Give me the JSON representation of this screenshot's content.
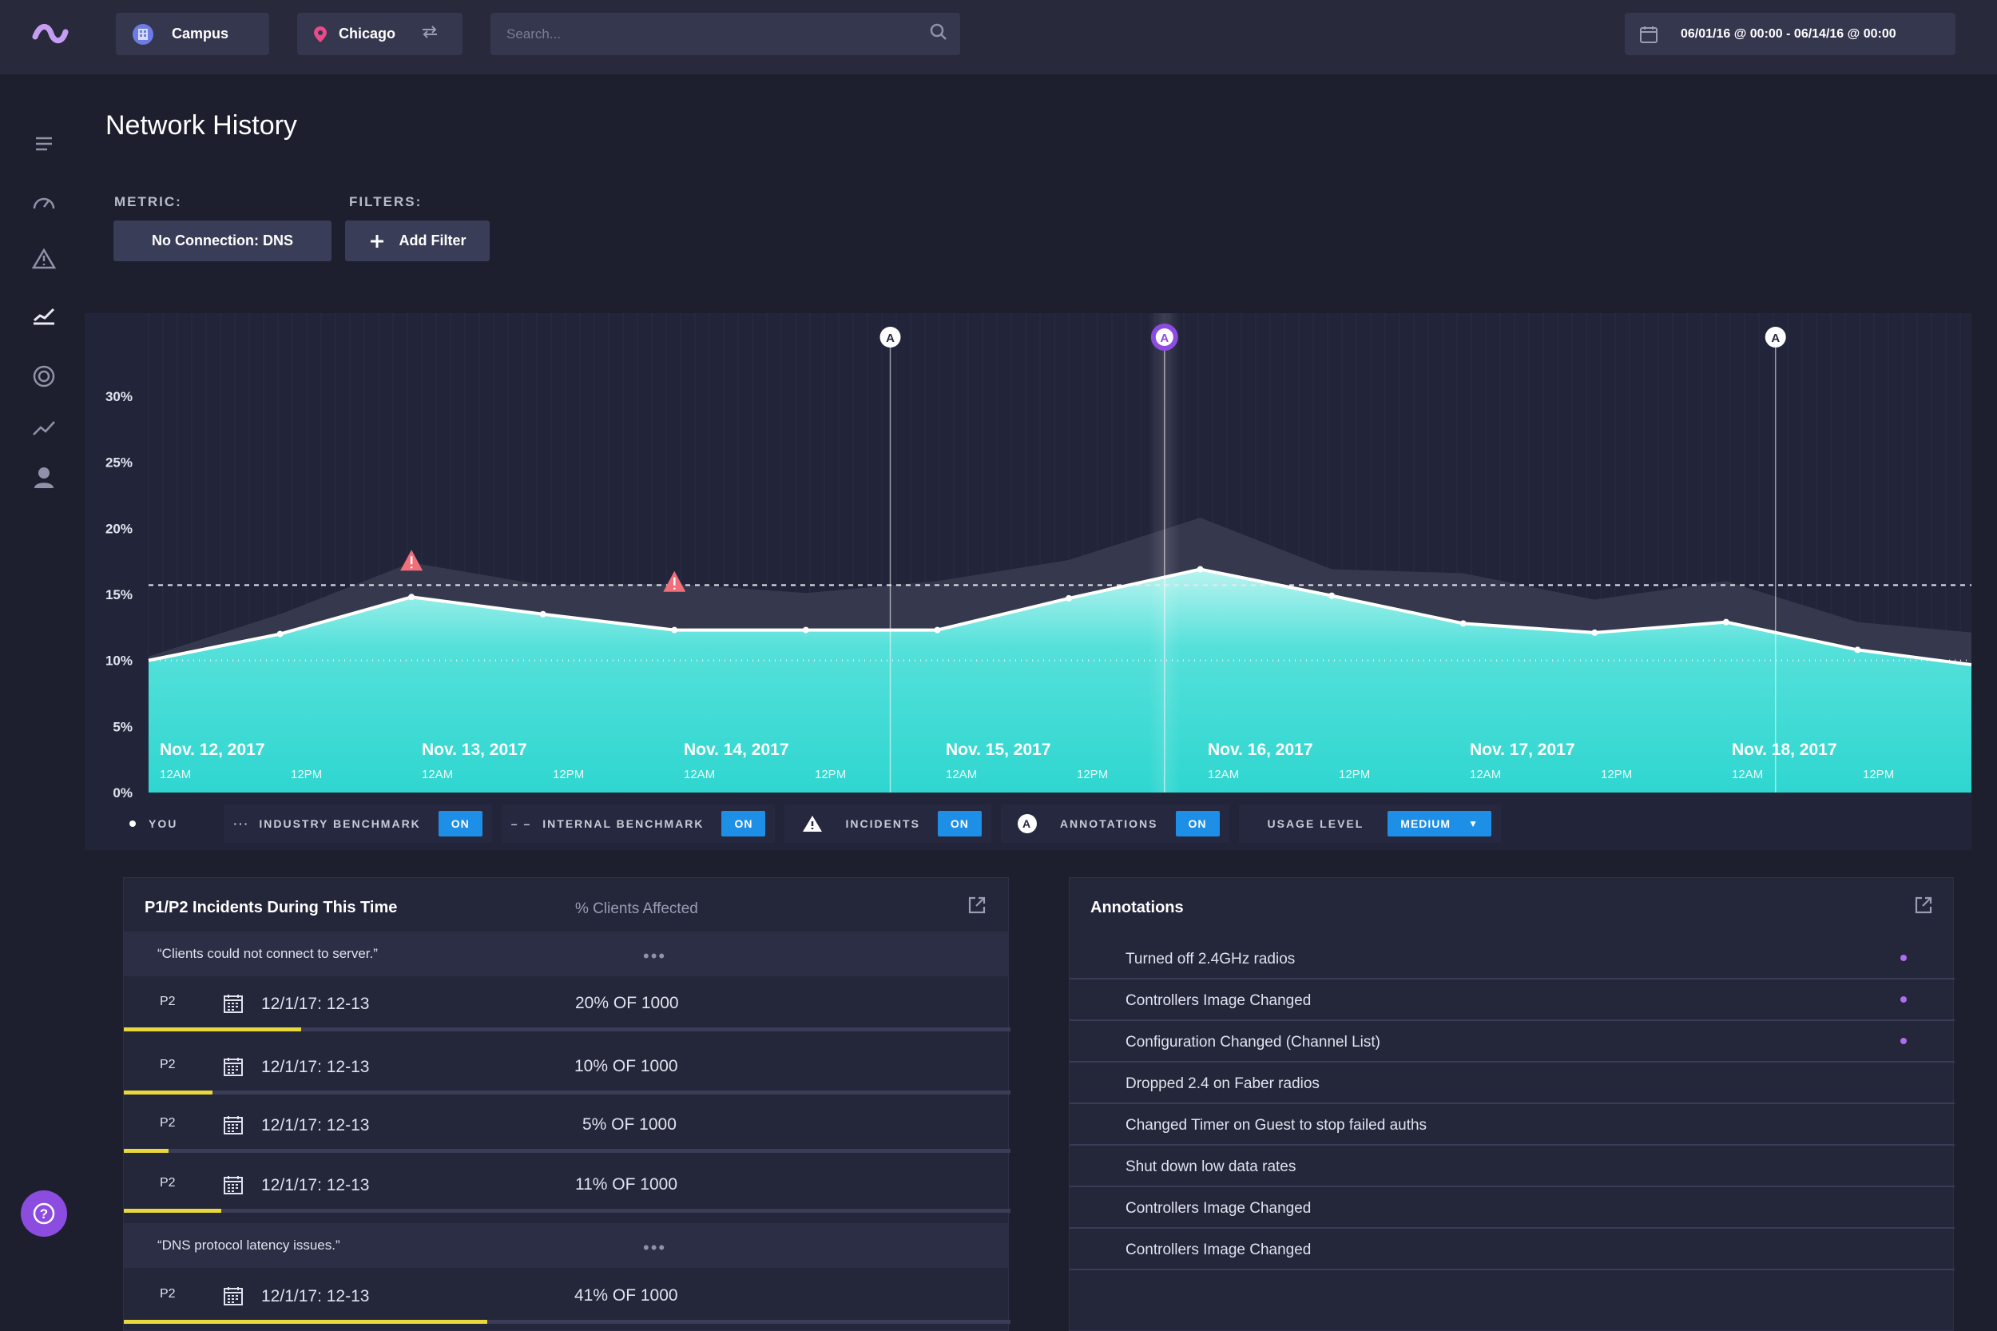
{
  "topbar": {
    "campus_label": "Campus",
    "location_label": "Chicago",
    "search_placeholder": "Search...",
    "date_range": "06/01/16 @ 00:00 - 06/14/16 @ 00:00"
  },
  "page": {
    "title": "Network History",
    "metric_label": "METRIC:",
    "metric_value": "No Connection: DNS",
    "filters_label": "FILTERS:",
    "add_filter_label": "Add Filter"
  },
  "chart_data": {
    "type": "area",
    "y_ticks": [
      "30%",
      "25%",
      "20%",
      "15%",
      "10%",
      "5%",
      "0%"
    ],
    "ylim": [
      0,
      30
    ],
    "days": [
      "Nov. 12, 2017",
      "Nov. 13, 2017",
      "Nov. 14, 2017",
      "Nov. 15, 2017",
      "Nov. 16, 2017",
      "Nov. 17, 2017",
      "Nov. 18, 2017"
    ],
    "sub_ticks": [
      "12AM",
      "12PM"
    ],
    "series": [
      {
        "name": "YOU",
        "values": [
          10,
          12,
          14.8,
          13.5,
          12.3,
          12.3,
          12.3,
          14.7,
          16.9,
          14.9,
          12.8,
          12.1,
          12.9,
          10.8,
          9.5
        ]
      },
      {
        "values": [
          10.3,
          13.5,
          17.4,
          15.7,
          15.8,
          15.1,
          16.0,
          17.6,
          20.8,
          16.9,
          16.6,
          14.6,
          16.0,
          12.9,
          12.0
        ]
      }
    ],
    "industry_benchmark": 15.7,
    "internal_benchmark": 10.0,
    "incidents_at": [
      2,
      4
    ],
    "annotations_at": [
      0.403,
      0.552,
      0.884
    ],
    "highlighted_annotation": 1,
    "annotation_marker": "A",
    "grid": false
  },
  "legend": {
    "you": "YOU",
    "industry": "INDUSTRY BENCHMARK",
    "internal": "INTERNAL BENCHMARK",
    "incidents": "INCIDENTS",
    "annotations": "ANNOTATIONS",
    "usage": "USAGE LEVEL",
    "on": "ON",
    "usage_value": "MEDIUM"
  },
  "incidents_panel": {
    "title": "P1/P2 Incidents During This Time",
    "column": "% Clients Affected",
    "group1": "“Clients could not connect to server.”",
    "group2": "“DNS protocol latency issues.”",
    "rows": [
      {
        "priority": "P2",
        "date": "12/1/17: 12-13",
        "pct": "20% OF 1000",
        "fraction": 0.2
      },
      {
        "priority": "P2",
        "date": "12/1/17: 12-13",
        "pct": "10% OF 1000",
        "fraction": 0.1
      },
      {
        "priority": "P2",
        "date": "12/1/17: 12-13",
        "pct": "5% OF 1000",
        "fraction": 0.05
      },
      {
        "priority": "P2",
        "date": "12/1/17: 12-13",
        "pct": "11% OF 1000",
        "fraction": 0.11
      },
      {
        "priority": "P2",
        "date": "12/1/17: 12-13",
        "pct": "41% OF 1000",
        "fraction": 0.41
      }
    ]
  },
  "annotations_panel": {
    "title": "Annotations",
    "items": [
      {
        "text": "Turned off 2.4GHz radios",
        "marked": true
      },
      {
        "text": "Controllers Image Changed",
        "marked": true
      },
      {
        "text": "Configuration Changed (Channel List)",
        "marked": true
      },
      {
        "text": "Dropped 2.4 on Faber radios",
        "marked": false
      },
      {
        "text": "Changed Timer on Guest to stop failed auths",
        "marked": false
      },
      {
        "text": "Shut down low data rates",
        "marked": false
      },
      {
        "text": "Controllers Image Changed",
        "marked": false
      },
      {
        "text": "Controllers Image Changed",
        "marked": false
      }
    ]
  },
  "colors": {
    "accent": "#1e8fe6",
    "area_top": "#b8f4ef",
    "area_bottom": "#2fd6d0",
    "incident": "#f06f7a",
    "annotation_highlight": "#8c4ce0",
    "bar": "#e8d83c"
  }
}
